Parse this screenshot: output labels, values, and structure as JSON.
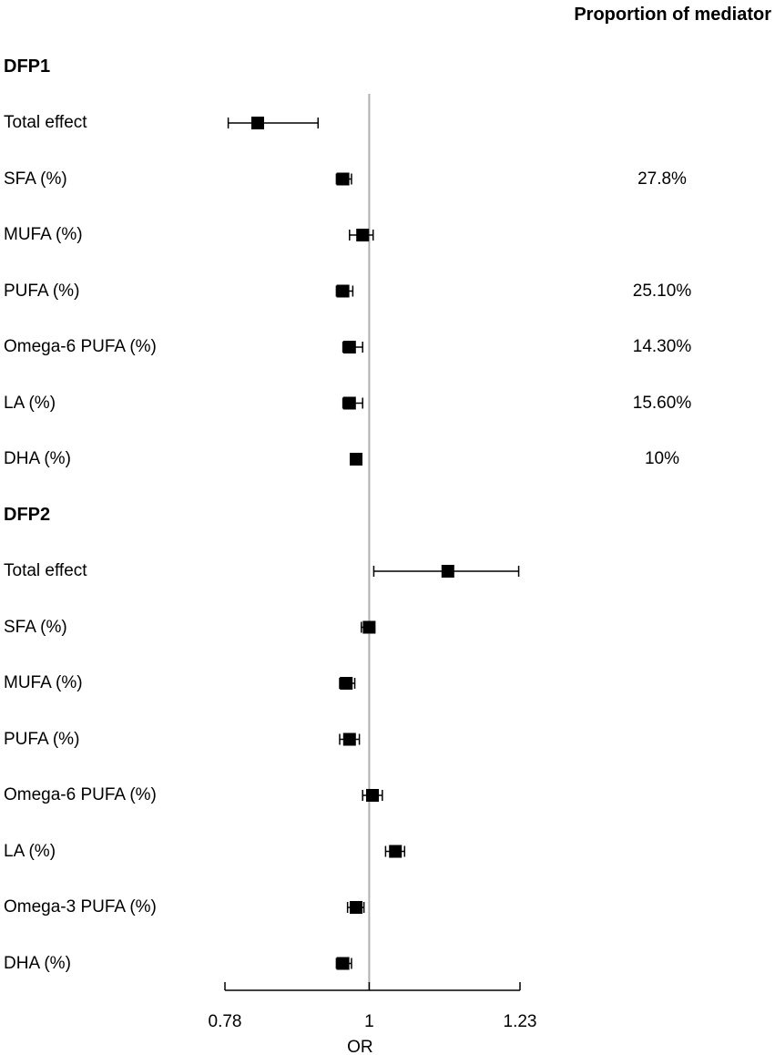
{
  "header": {
    "proportion_title": "Proportion of mediator"
  },
  "chart_data": {
    "type": "forest",
    "xlabel": "OR",
    "xlim": [
      0.78,
      1.23
    ],
    "xticks": [
      "0.78",
      "1",
      "1.23"
    ],
    "reference_line": 1,
    "groups": [
      {
        "name": "DFP1",
        "rows": [
          {
            "label": "Total effect",
            "or": 0.83,
            "lo": 0.785,
            "hi": 0.922,
            "proportion": ""
          },
          {
            "label": "SFA (%)",
            "or": 0.96,
            "lo": 0.95,
            "hi": 0.973,
            "proportion": "27.8%"
          },
          {
            "label": "MUFA (%)",
            "or": 0.99,
            "lo": 0.97,
            "hi": 1.006,
            "proportion": ""
          },
          {
            "label": "PUFA (%)",
            "or": 0.96,
            "lo": 0.95,
            "hi": 0.975,
            "proportion": "25.10%"
          },
          {
            "label": "Omega-6 PUFA (%)",
            "or": 0.97,
            "lo": 0.96,
            "hi": 0.99,
            "proportion": "14.30%"
          },
          {
            "label": "LA (%)",
            "or": 0.97,
            "lo": 0.96,
            "hi": 0.99,
            "proportion": "15.60%"
          },
          {
            "label": "DHA (%)",
            "or": 0.98,
            "lo": 0.975,
            "hi": 0.986,
            "proportion": "10%"
          }
        ]
      },
      {
        "name": "DFP2",
        "rows": [
          {
            "label": "Total effect",
            "or": 1.12,
            "lo": 1.007,
            "hi": 1.228,
            "proportion": ""
          },
          {
            "label": "SFA (%)",
            "or": 1.0,
            "lo": 0.988,
            "hi": 1.005,
            "proportion": ""
          },
          {
            "label": "MUFA (%)",
            "or": 0.965,
            "lo": 0.955,
            "hi": 0.978,
            "proportion": ""
          },
          {
            "label": "PUFA (%)",
            "or": 0.97,
            "lo": 0.955,
            "hi": 0.985,
            "proportion": ""
          },
          {
            "label": "Omega-6 PUFA (%)",
            "or": 1.005,
            "lo": 0.99,
            "hi": 1.02,
            "proportion": ""
          },
          {
            "label": "LA (%)",
            "or": 1.04,
            "lo": 1.025,
            "hi": 1.054,
            "proportion": ""
          },
          {
            "label": "Omega-3 PUFA (%)",
            "or": 0.98,
            "lo": 0.967,
            "hi": 0.992,
            "proportion": ""
          },
          {
            "label": "DHA (%)",
            "or": 0.96,
            "lo": 0.95,
            "hi": 0.973,
            "proportion": ""
          }
        ]
      }
    ]
  }
}
